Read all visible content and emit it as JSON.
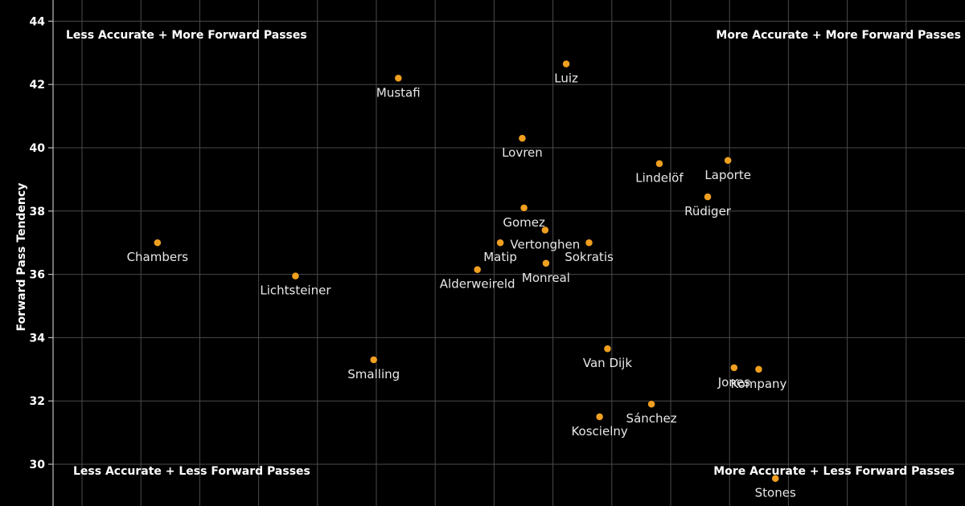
{
  "chart_data": {
    "type": "scatter",
    "title": "",
    "xlabel": "",
    "ylabel": "Forward Pass Tendency",
    "ylim": [
      29,
      44.5
    ],
    "xlim": [
      0,
      100
    ],
    "yticks": [
      30,
      32,
      34,
      36,
      38,
      40,
      42,
      44
    ],
    "grid": true,
    "point_color": "#f0a020",
    "quadrant_labels": {
      "top_left": "Less Accurate + More Forward Passes",
      "top_right": "More Accurate + More Forward Passes",
      "bottom_left": "Less Accurate + Less Forward Passes",
      "bottom_right": "More Accurate + Less Forward Passes"
    },
    "points": [
      {
        "name": "Chambers",
        "x": 9.5,
        "y": 37.0
      },
      {
        "name": "Lichtsteiner",
        "x": 25.2,
        "y": 35.95
      },
      {
        "name": "Smalling",
        "x": 34.1,
        "y": 33.3
      },
      {
        "name": "Mustafi",
        "x": 36.9,
        "y": 42.2
      },
      {
        "name": "Alderweireld",
        "x": 45.9,
        "y": 36.15
      },
      {
        "name": "Matip",
        "x": 48.5,
        "y": 37.0
      },
      {
        "name": "Lovren",
        "x": 51.0,
        "y": 40.3
      },
      {
        "name": "Gomez",
        "x": 51.2,
        "y": 38.1
      },
      {
        "name": "Vertonghen",
        "x": 53.6,
        "y": 37.4
      },
      {
        "name": "Monreal",
        "x": 53.7,
        "y": 36.35
      },
      {
        "name": "Luiz",
        "x": 56.0,
        "y": 42.65
      },
      {
        "name": "Sokratis",
        "x": 58.6,
        "y": 37.0
      },
      {
        "name": "Koscielny",
        "x": 59.8,
        "y": 31.5
      },
      {
        "name": "Van Dijk",
        "x": 60.7,
        "y": 33.65
      },
      {
        "name": "Sánchez",
        "x": 65.7,
        "y": 31.9
      },
      {
        "name": "Lindelöf",
        "x": 66.6,
        "y": 39.5
      },
      {
        "name": "Rüdiger",
        "x": 72.1,
        "y": 38.45
      },
      {
        "name": "Laporte",
        "x": 74.4,
        "y": 39.6
      },
      {
        "name": "Jones",
        "x": 75.1,
        "y": 33.05
      },
      {
        "name": "Kompany",
        "x": 77.9,
        "y": 33.0
      },
      {
        "name": "Stones",
        "x": 79.8,
        "y": 29.55
      }
    ]
  }
}
